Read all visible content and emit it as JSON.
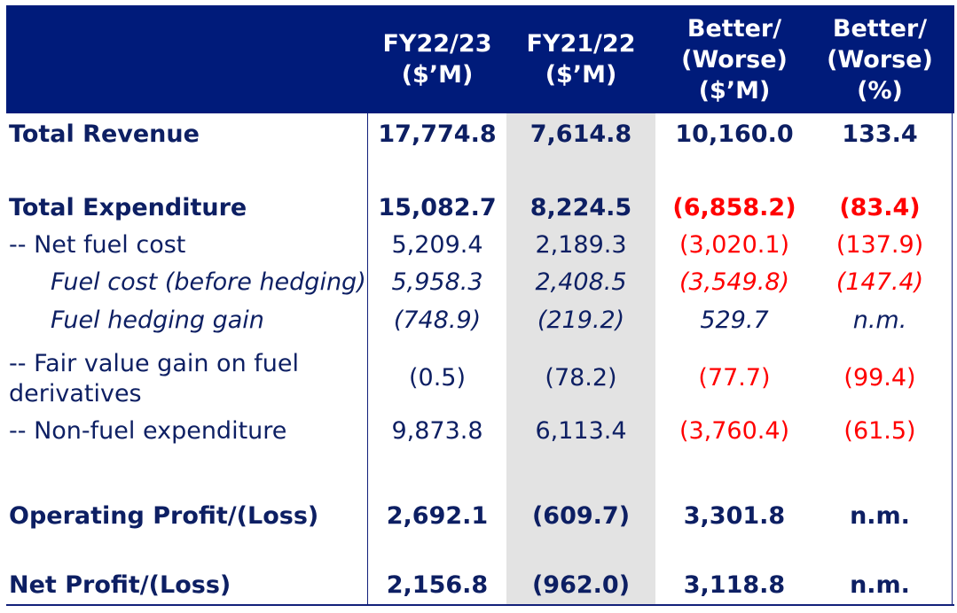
{
  "columns": [
    {
      "line1": "FY22/23",
      "line2": "($’M)",
      "line3": ""
    },
    {
      "line1": "FY21/22",
      "line2": "($’M)",
      "line3": ""
    },
    {
      "line1": "Better/",
      "line2": "(Worse)",
      "line3": "($’M)"
    },
    {
      "line1": "Better/",
      "line2": "(Worse)",
      "line3": "(%)"
    }
  ],
  "rows": [
    {
      "label": "Total Revenue",
      "v1": "17,774.8",
      "v2": "7,614.8",
      "v3": "10,160.0",
      "v4": "133.4"
    },
    {
      "label": "Total Expenditure",
      "v1": "15,082.7",
      "v2": "8,224.5",
      "v3": "(6,858.2)",
      "v4": "(83.4)"
    },
    {
      "label": "-- Net fuel cost",
      "v1": "5,209.4",
      "v2": "2,189.3",
      "v3": "(3,020.1)",
      "v4": "(137.9)"
    },
    {
      "label": "Fuel cost (before hedging)",
      "v1": "5,958.3",
      "v2": "2,408.5",
      "v3": "(3,549.8)",
      "v4": "(147.4)"
    },
    {
      "label": "Fuel hedging gain",
      "v1": "(748.9)",
      "v2": "(219.2)",
      "v3": "529.7",
      "v4": "n.m."
    },
    {
      "label": "-- Fair value gain on fuel derivatives",
      "v1": "(0.5)",
      "v2": "(78.2)",
      "v3": "(77.7)",
      "v4": "(99.4)"
    },
    {
      "label": "-- Non-fuel expenditure",
      "v1": "9,873.8",
      "v2": "6,113.4",
      "v3": "(3,760.4)",
      "v4": "(61.5)"
    },
    {
      "label": "Operating Profit/(Loss)",
      "v1": "2,692.1",
      "v2": "(609.7)",
      "v3": "3,301.8",
      "v4": "n.m."
    },
    {
      "label": "Net Profit/(Loss)",
      "v1": "2,156.8",
      "v2": "(962.0)",
      "v3": "3,118.8",
      "v4": "n.m."
    }
  ],
  "colors": {
    "header_bg": "#001b7a",
    "text": "#0d1f63",
    "negative": "#ff0000",
    "shade": "#e3e3e3"
  }
}
